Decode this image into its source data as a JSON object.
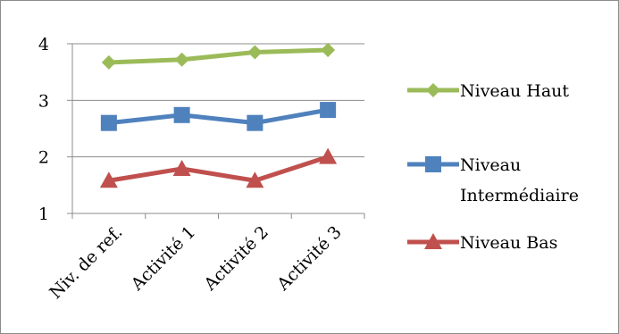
{
  "chart_data": {
    "type": "line",
    "categories": [
      "Niv. de ref.",
      "Activité 1",
      "Activité 2",
      "Activité 3"
    ],
    "ylim": [
      1,
      4
    ],
    "yticks": [
      "1",
      "2",
      "3",
      "4"
    ],
    "grid": true,
    "legend_position": "right",
    "series": [
      {
        "name_lines": [
          "Niveau Haut"
        ],
        "marker": "diamond",
        "color": "#9bbb59",
        "values": [
          3.67,
          3.72,
          3.85,
          3.89
        ]
      },
      {
        "name_lines": [
          "Niveau",
          "Intermédiaire"
        ],
        "marker": "square",
        "color": "#4f81bd",
        "values": [
          2.6,
          2.74,
          2.6,
          2.83
        ]
      },
      {
        "name_lines": [
          "Niveau Bas"
        ],
        "marker": "triangle",
        "color": "#c0504d",
        "values": [
          1.58,
          1.79,
          1.58,
          2.0
        ]
      }
    ]
  }
}
